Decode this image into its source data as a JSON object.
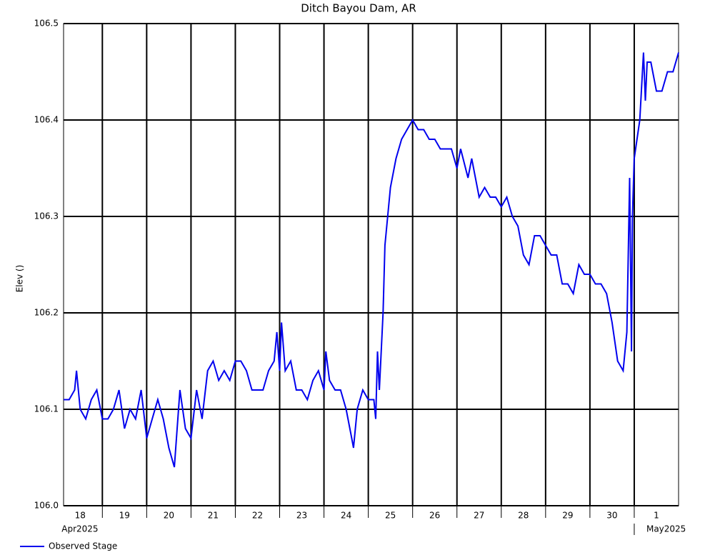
{
  "chart_data": {
    "type": "line",
    "title": "Ditch Bayou Dam, AR",
    "y_label": "Elev ()",
    "x": [
      "2025-04-18T03:00",
      "2025-04-18T06:00",
      "2025-04-18T09:00",
      "2025-04-18T10:00",
      "2025-04-18T12:00",
      "2025-04-18T15:00",
      "2025-04-18T18:00",
      "2025-04-18T21:00",
      "2025-04-19T00:00",
      "2025-04-19T03:00",
      "2025-04-19T06:00",
      "2025-04-19T09:00",
      "2025-04-19T12:00",
      "2025-04-19T15:00",
      "2025-04-19T18:00",
      "2025-04-19T21:00",
      "2025-04-20T00:00",
      "2025-04-20T03:00",
      "2025-04-20T06:00",
      "2025-04-20T09:00",
      "2025-04-20T12:00",
      "2025-04-20T15:00",
      "2025-04-20T18:00",
      "2025-04-20T21:00",
      "2025-04-21T00:00",
      "2025-04-21T03:00",
      "2025-04-21T06:00",
      "2025-04-21T09:00",
      "2025-04-21T12:00",
      "2025-04-21T15:00",
      "2025-04-21T18:00",
      "2025-04-21T21:00",
      "2025-04-22T00:00",
      "2025-04-22T03:00",
      "2025-04-22T06:00",
      "2025-04-22T09:00",
      "2025-04-22T12:00",
      "2025-04-22T15:00",
      "2025-04-22T18:00",
      "2025-04-22T21:00",
      "2025-04-22T22:30",
      "2025-04-23T00:00",
      "2025-04-23T01:00",
      "2025-04-23T03:00",
      "2025-04-23T06:00",
      "2025-04-23T09:00",
      "2025-04-23T12:00",
      "2025-04-23T15:00",
      "2025-04-23T18:00",
      "2025-04-23T21:00",
      "2025-04-24T00:00",
      "2025-04-24T01:00",
      "2025-04-24T03:00",
      "2025-04-24T06:00",
      "2025-04-24T09:00",
      "2025-04-24T12:00",
      "2025-04-24T15:00",
      "2025-04-24T16:00",
      "2025-04-24T18:00",
      "2025-04-24T21:00",
      "2025-04-25T00:00",
      "2025-04-25T03:00",
      "2025-04-25T04:00",
      "2025-04-25T05:00",
      "2025-04-25T06:00",
      "2025-04-25T08:00",
      "2025-04-25T09:00",
      "2025-04-25T12:00",
      "2025-04-25T15:00",
      "2025-04-25T18:00",
      "2025-04-25T21:00",
      "2025-04-26T00:00",
      "2025-04-26T03:00",
      "2025-04-26T06:00",
      "2025-04-26T09:00",
      "2025-04-26T12:00",
      "2025-04-26T15:00",
      "2025-04-26T18:00",
      "2025-04-26T21:00",
      "2025-04-27T00:00",
      "2025-04-27T02:00",
      "2025-04-27T06:00",
      "2025-04-27T08:00",
      "2025-04-27T12:00",
      "2025-04-27T15:00",
      "2025-04-27T18:00",
      "2025-04-27T21:00",
      "2025-04-28T00:00",
      "2025-04-28T03:00",
      "2025-04-28T06:00",
      "2025-04-28T09:00",
      "2025-04-28T12:00",
      "2025-04-28T15:00",
      "2025-04-28T18:00",
      "2025-04-28T21:00",
      "2025-04-29T00:00",
      "2025-04-29T03:00",
      "2025-04-29T06:00",
      "2025-04-29T09:00",
      "2025-04-29T12:00",
      "2025-04-29T15:00",
      "2025-04-29T18:00",
      "2025-04-29T21:00",
      "2025-04-30T00:00",
      "2025-04-30T03:00",
      "2025-04-30T06:00",
      "2025-04-30T09:00",
      "2025-04-30T12:00",
      "2025-04-30T15:00",
      "2025-04-30T18:00",
      "2025-04-30T20:00",
      "2025-04-30T21:30",
      "2025-04-30T22:30",
      "2025-04-30T23:00",
      "2025-05-01T00:00",
      "2025-05-01T03:00",
      "2025-05-01T05:00",
      "2025-05-01T06:00",
      "2025-05-01T07:00",
      "2025-05-01T09:00",
      "2025-05-01T12:00",
      "2025-05-01T15:00",
      "2025-05-01T18:00",
      "2025-05-01T21:00",
      "2025-05-02T00:00"
    ],
    "series": [
      {
        "name": "Observed Stage",
        "color": "#0000ee",
        "values": [
          106.11,
          106.11,
          106.12,
          106.14,
          106.1,
          106.09,
          106.11,
          106.12,
          106.09,
          106.09,
          106.1,
          106.12,
          106.08,
          106.1,
          106.09,
          106.12,
          106.07,
          106.09,
          106.11,
          106.09,
          106.06,
          106.04,
          106.12,
          106.08,
          106.07,
          106.12,
          106.09,
          106.14,
          106.15,
          106.13,
          106.14,
          106.13,
          106.15,
          106.15,
          106.14,
          106.12,
          106.12,
          106.12,
          106.14,
          106.15,
          106.18,
          106.14,
          106.19,
          106.14,
          106.15,
          106.12,
          106.12,
          106.11,
          106.13,
          106.14,
          106.12,
          106.16,
          106.13,
          106.12,
          106.12,
          106.1,
          106.07,
          106.06,
          106.1,
          106.12,
          106.11,
          106.11,
          106.09,
          106.16,
          106.12,
          106.2,
          106.27,
          106.33,
          106.36,
          106.38,
          106.39,
          106.4,
          106.39,
          106.39,
          106.38,
          106.38,
          106.37,
          106.37,
          106.37,
          106.35,
          106.37,
          106.34,
          106.36,
          106.32,
          106.33,
          106.32,
          106.32,
          106.31,
          106.32,
          106.3,
          106.29,
          106.26,
          106.25,
          106.28,
          106.28,
          106.27,
          106.26,
          106.26,
          106.23,
          106.23,
          106.22,
          106.25,
          106.24,
          106.24,
          106.23,
          106.23,
          106.22,
          106.19,
          106.15,
          106.14,
          106.18,
          106.34,
          106.16,
          106.3,
          106.36,
          106.4,
          106.47,
          106.42,
          106.46,
          106.46,
          106.43,
          106.43,
          106.45,
          106.45,
          106.47
        ]
      }
    ],
    "xlim": [
      "2025-04-18T03:00",
      "2025-05-02T00:00"
    ],
    "xticks": [
      "2025-04-19T00:00",
      "2025-04-20T00:00",
      "2025-04-21T00:00",
      "2025-04-22T00:00",
      "2025-04-23T00:00",
      "2025-04-24T00:00",
      "2025-04-25T00:00",
      "2025-04-26T00:00",
      "2025-04-27T00:00",
      "2025-04-28T00:00",
      "2025-04-29T00:00",
      "2025-04-30T00:00",
      "2025-05-01T00:00"
    ],
    "day_labels": [
      {
        "value": "2025-04-18T12:00",
        "label": "18"
      },
      {
        "value": "2025-04-19T12:00",
        "label": "19"
      },
      {
        "value": "2025-04-20T12:00",
        "label": "20"
      },
      {
        "value": "2025-04-21T12:00",
        "label": "21"
      },
      {
        "value": "2025-04-22T12:00",
        "label": "22"
      },
      {
        "value": "2025-04-23T12:00",
        "label": "23"
      },
      {
        "value": "2025-04-24T12:00",
        "label": "24"
      },
      {
        "value": "2025-04-25T12:00",
        "label": "25"
      },
      {
        "value": "2025-04-26T12:00",
        "label": "26"
      },
      {
        "value": "2025-04-27T12:00",
        "label": "27"
      },
      {
        "value": "2025-04-28T12:00",
        "label": "28"
      },
      {
        "value": "2025-04-29T12:00",
        "label": "29"
      },
      {
        "value": "2025-04-30T12:00",
        "label": "30"
      },
      {
        "value": "2025-05-01T12:00",
        "label": "1"
      }
    ],
    "month_labels": [
      {
        "value": "2025-04-18T12:00",
        "label": "Apr2025"
      },
      {
        "value": "2025-05-01T12:00",
        "label": "May2025"
      }
    ],
    "ylim": [
      106.0,
      106.5
    ],
    "yticks": [
      {
        "value": 106.0,
        "label": "106.0"
      },
      106.1,
      106.2,
      106.3,
      106.4,
      106.5
    ],
    "grid": true,
    "legend": "bottom-left"
  }
}
